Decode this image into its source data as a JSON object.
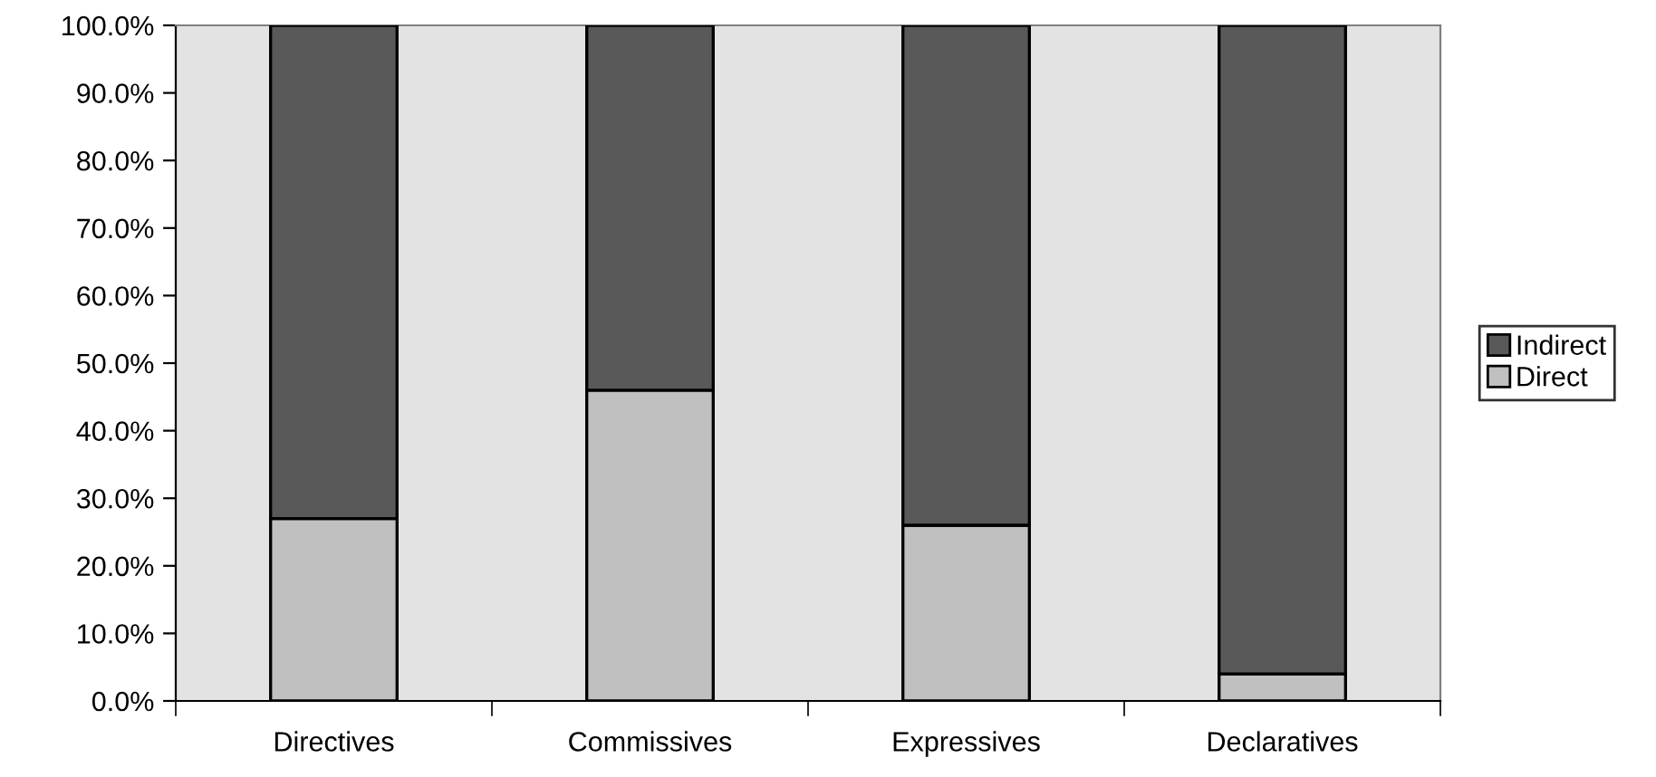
{
  "chart_data": {
    "type": "bar",
    "stacked": true,
    "categories": [
      "Directives",
      "Commissives",
      "Expressives",
      "Declaratives"
    ],
    "series": [
      {
        "name": "Direct",
        "color": "#c0c0c0",
        "values": [
          27,
          46,
          26,
          4
        ]
      },
      {
        "name": "Indirect",
        "color": "#595959",
        "values": [
          73,
          54,
          74,
          96
        ]
      }
    ],
    "ylim": [
      0,
      100
    ],
    "yticks": [
      {
        "value": 0,
        "label": "0.0%"
      },
      {
        "value": 10,
        "label": "10.0%"
      },
      {
        "value": 20,
        "label": "20.0%"
      },
      {
        "value": 30,
        "label": "30.0%"
      },
      {
        "value": 40,
        "label": "40.0%"
      },
      {
        "value": 50,
        "label": "50.0%"
      },
      {
        "value": 60,
        "label": "60.0%"
      },
      {
        "value": 70,
        "label": "70.0%"
      },
      {
        "value": 80,
        "label": "80.0%"
      },
      {
        "value": 90,
        "label": "90.0%"
      },
      {
        "value": 100,
        "label": "100.0%"
      }
    ],
    "grid": false,
    "legend": "right"
  }
}
